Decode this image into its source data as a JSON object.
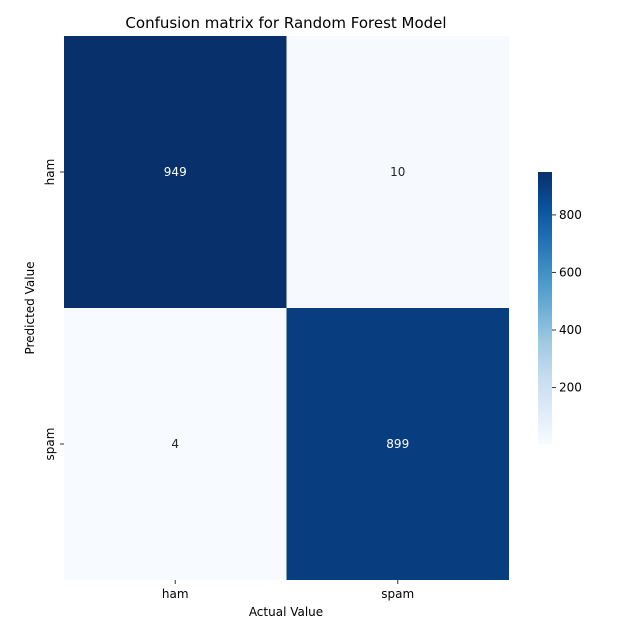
{
  "chart_data": {
    "type": "heatmap",
    "title": "Confusion matrix for Random Forest Model",
    "xlabel": "Actual Value",
    "ylabel": "Predicted Value",
    "x_categories": [
      "ham",
      "spam"
    ],
    "y_categories": [
      "ham",
      "spam"
    ],
    "values": [
      [
        949,
        10
      ],
      [
        4,
        899
      ]
    ],
    "colormap": "Blues",
    "colorbar": {
      "range": [
        4,
        949
      ],
      "ticks": [
        200,
        400,
        600,
        800
      ],
      "low_color": "#f7fbff",
      "high_color": "#08306b"
    },
    "grid": false
  }
}
